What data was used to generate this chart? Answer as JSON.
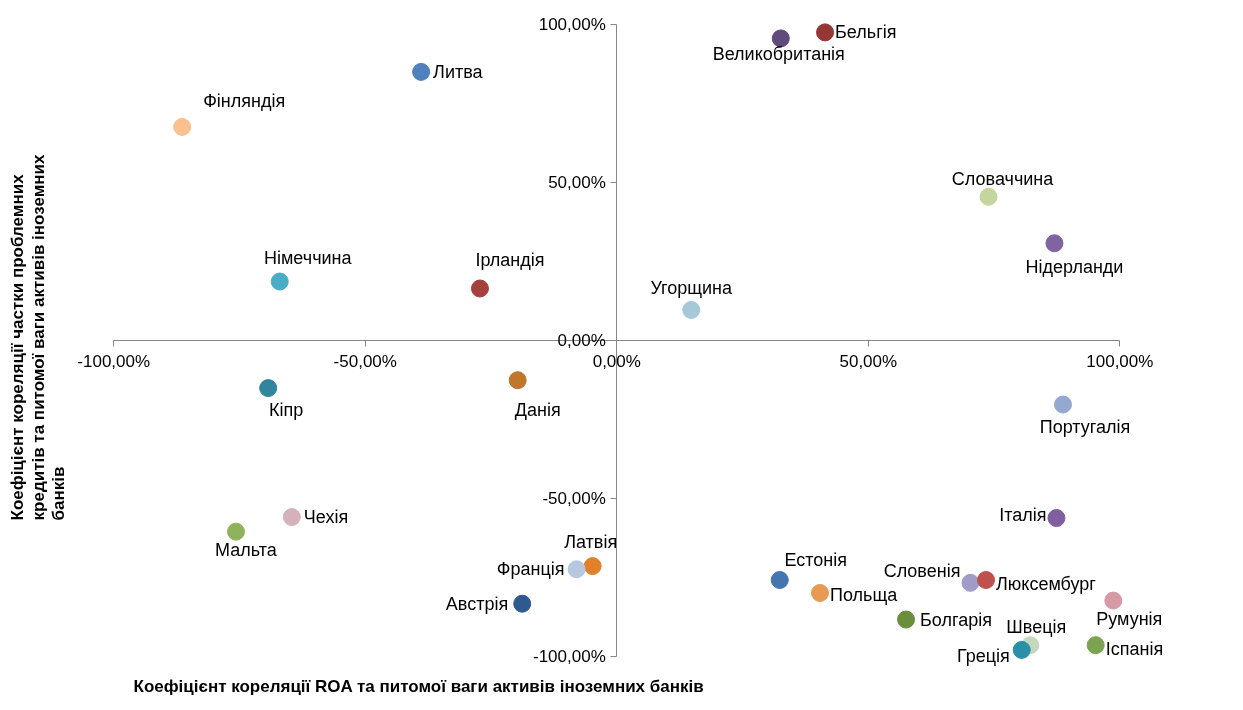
{
  "chart_data": {
    "type": "scatter",
    "xlabel": "Коефіцієнт кореляції ROA та питомої ваги активів іноземних банків",
    "ylabel": "Коефіцієнт кореляції частки проблемних кредитів та питомої ваги активів іноземних банків",
    "xlim": [
      -100,
      100
    ],
    "ylim": [
      -100,
      100
    ],
    "xticks": [
      {
        "value": -100,
        "label": "-100,00%"
      },
      {
        "value": -50,
        "label": "-50,00%"
      },
      {
        "value": 0,
        "label": "0,00%"
      },
      {
        "value": 50,
        "label": "50,00%"
      },
      {
        "value": 100,
        "label": "100,00%"
      }
    ],
    "yticks": [
      {
        "value": -100,
        "label": "-100,00%"
      },
      {
        "value": -50,
        "label": "-50,00%"
      },
      {
        "value": 0,
        "label": "0,00%"
      },
      {
        "value": 50,
        "label": "50,00%"
      },
      {
        "value": 100,
        "label": "100,00%"
      }
    ],
    "grid": false,
    "marker": "circle",
    "series": [
      {
        "name": "Бельгія",
        "color": "#953735",
        "x": [
          41.4
        ],
        "values": [
          97.5
        ]
      },
      {
        "name": "Великобританія",
        "color": "#604a7b",
        "x": [
          32.6
        ],
        "values": [
          95.6
        ]
      },
      {
        "name": "Литва",
        "color": "#4f81bd",
        "x": [
          -38.9
        ],
        "values": [
          85
        ]
      },
      {
        "name": "Фінляндія",
        "color": "#fac090",
        "x": [
          -86.4
        ],
        "values": [
          67.6
        ]
      },
      {
        "name": "Словаччина",
        "color": "#c3d69b",
        "x": [
          73.9
        ],
        "values": [
          45.5
        ]
      },
      {
        "name": "Нідерланди",
        "color": "#8064a2",
        "x": [
          87
        ],
        "values": [
          30.8
        ]
      },
      {
        "name": "Німеччина",
        "color": "#4bacc6",
        "x": [
          -67
        ],
        "values": [
          18.7
        ]
      },
      {
        "name": "Ірландія",
        "color": "#a5403d",
        "x": [
          -27.2
        ],
        "values": [
          16.5
        ]
      },
      {
        "name": "Угорщина",
        "color": "#a5c9d9",
        "x": [
          14.8
        ],
        "values": [
          9.7
        ]
      },
      {
        "name": "Кіпр",
        "color": "#31859c",
        "x": [
          -69.3
        ],
        "values": [
          -15
        ]
      },
      {
        "name": "Данія",
        "color": "#c0762c",
        "x": [
          -19.7
        ],
        "values": [
          -12.5
        ]
      },
      {
        "name": "Португалія",
        "color": "#95a9d0",
        "x": [
          88.7
        ],
        "values": [
          -20.2
        ]
      },
      {
        "name": "Італія",
        "color": "#7f5fa0",
        "x": [
          87.4
        ],
        "values": [
          -56.1
        ]
      },
      {
        "name": "Мальта",
        "color": "#8fb35c",
        "x": [
          -75.7
        ],
        "values": [
          -60.4
        ]
      },
      {
        "name": "Чехія",
        "color": "#d5b1bb",
        "x": [
          -64.6
        ],
        "values": [
          -55.8
        ]
      },
      {
        "name": "Латвія",
        "color": "#e0822c",
        "x": [
          -4.8
        ],
        "values": [
          -71.3
        ]
      },
      {
        "name": "Франція",
        "color": "#b7c7e1",
        "x": [
          -8
        ],
        "values": [
          -72.3
        ]
      },
      {
        "name": "Австрія",
        "color": "#2f5a8f",
        "x": [
          -18.8
        ],
        "values": [
          -83.2
        ]
      },
      {
        "name": "Естонія",
        "color": "#4676b0",
        "x": [
          32.4
        ],
        "values": [
          -75.7
        ]
      },
      {
        "name": "Польща",
        "color": "#e89a52",
        "x": [
          40.4
        ],
        "values": [
          -79.8
        ]
      },
      {
        "name": "Словенія",
        "color": "#a09cc9",
        "x": [
          70.3
        ],
        "values": [
          -76.6
        ]
      },
      {
        "name": "Люксембург",
        "color": "#c0504d",
        "x": [
          73.4
        ],
        "values": [
          -75.7
        ]
      },
      {
        "name": "Румунія",
        "color": "#d59aa5",
        "x": [
          98.7
        ],
        "values": [
          -82.2
        ]
      },
      {
        "name": "Болгарія",
        "color": "#6b8e3b",
        "x": [
          57.5
        ],
        "values": [
          -88.2
        ]
      },
      {
        "name": "Швеція",
        "color": "#c4d8be",
        "x": [
          82.2
        ],
        "values": [
          -96.3
        ]
      },
      {
        "name": "Греція",
        "color": "#2a8fa8",
        "x": [
          80.5
        ],
        "values": [
          -97.8
        ]
      },
      {
        "name": "Іспанія",
        "color": "#7ba350",
        "x": [
          95.2
        ],
        "values": [
          -96.3
        ]
      }
    ]
  }
}
